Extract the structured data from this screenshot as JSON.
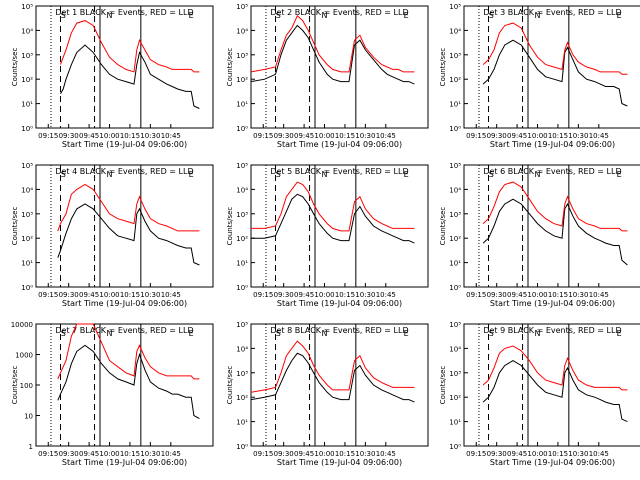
{
  "figure": {
    "x_label": "Start Time (19-Jul-04 09:06:00)",
    "y_label": "Counts/sec",
    "x_ticks": [
      "09:15",
      "09:30",
      "09:45",
      "10:00",
      "10:15",
      "10:30",
      "10:45"
    ],
    "colors": {
      "events": "#000000",
      "lld": "#ff0000",
      "axis": "#000000"
    }
  },
  "chart_data": [
    {
      "type": "line",
      "title": "Det 1 BLACK = Events, RED = LLD",
      "yticks": [
        "10⁰",
        "10¹",
        "10²",
        "10³",
        "10⁴",
        "10⁵"
      ],
      "ylim_log": [
        0,
        5
      ],
      "x_minutes": [
        0,
        18,
        20,
        22,
        26,
        30,
        36,
        42,
        48,
        54,
        60,
        66,
        72,
        74,
        76,
        80,
        84,
        90,
        96,
        100,
        104,
        110,
        114,
        116,
        120,
        130
      ],
      "series": [
        {
          "name": "Events",
          "log10_values": [
            null,
            1.4,
            1.6,
            2.0,
            2.6,
            3.1,
            3.4,
            3.1,
            2.6,
            2.2,
            2.0,
            1.9,
            1.8,
            2.6,
            3.1,
            2.7,
            2.2,
            2.0,
            1.8,
            1.7,
            1.6,
            1.5,
            1.5,
            0.9,
            0.8,
            null
          ]
        },
        {
          "name": "LLD",
          "log10_values": [
            null,
            2.6,
            2.9,
            3.2,
            3.9,
            4.3,
            4.4,
            4.2,
            3.5,
            2.9,
            2.6,
            2.4,
            2.3,
            3.2,
            3.6,
            3.2,
            2.8,
            2.6,
            2.5,
            2.4,
            2.4,
            2.4,
            2.4,
            2.3,
            2.3,
            null
          ]
        }
      ],
      "vlines": [
        {
          "x_minutes": 11,
          "style": "dotted"
        },
        {
          "x_minutes": 18,
          "style": "dashed"
        },
        {
          "x_minutes": 43,
          "style": "dashed"
        },
        {
          "x_minutes": 47,
          "style": "solid"
        },
        {
          "x_minutes": 77,
          "style": "solid"
        }
      ],
      "markers": [
        "S",
        "N",
        "E"
      ]
    },
    {
      "type": "line",
      "title": "Det 2 BLACK = Events, RED = LLD",
      "yticks": [
        "10⁰",
        "10¹",
        "10²",
        "10³",
        "10⁴",
        "10⁵"
      ],
      "ylim_log": [
        0,
        5
      ],
      "x_minutes": [
        0,
        10,
        18,
        22,
        26,
        30,
        34,
        38,
        42,
        46,
        50,
        56,
        60,
        66,
        72,
        76,
        80,
        84,
        90,
        96,
        100,
        104,
        108,
        112,
        116,
        120
      ],
      "series": [
        {
          "name": "Events",
          "log10_values": [
            1.9,
            2.0,
            2.2,
            3.0,
            3.6,
            3.9,
            4.2,
            4.0,
            3.7,
            3.2,
            2.7,
            2.2,
            2.0,
            1.9,
            1.9,
            3.4,
            3.6,
            3.2,
            2.8,
            2.4,
            2.2,
            2.1,
            2.0,
            1.9,
            1.9,
            1.8
          ]
        },
        {
          "name": "LLD",
          "log10_values": [
            2.3,
            2.4,
            2.5,
            3.2,
            3.8,
            4.1,
            4.6,
            4.4,
            4.0,
            3.5,
            3.0,
            2.6,
            2.4,
            2.3,
            2.3,
            3.6,
            3.8,
            3.3,
            2.9,
            2.6,
            2.5,
            2.4,
            2.4,
            2.3,
            2.3,
            2.3
          ]
        }
      ],
      "vlines": [
        {
          "x_minutes": 11,
          "style": "dotted"
        },
        {
          "x_minutes": 18,
          "style": "dashed"
        },
        {
          "x_minutes": 43,
          "style": "dashed"
        },
        {
          "x_minutes": 47,
          "style": "solid"
        },
        {
          "x_minutes": 77,
          "style": "solid"
        }
      ],
      "markers": [
        "S",
        "N",
        "E"
      ]
    },
    {
      "type": "line",
      "title": "Det 3 BLACK = Events, RED = LLD",
      "yticks": [
        "10⁰",
        "10¹",
        "10²",
        "10³",
        "10⁴",
        "10⁵"
      ],
      "ylim_log": [
        0,
        5
      ],
      "x_minutes": [
        0,
        14,
        18,
        22,
        26,
        30,
        36,
        42,
        48,
        54,
        60,
        66,
        72,
        74,
        76,
        80,
        84,
        90,
        96,
        100,
        104,
        110,
        114,
        116,
        120,
        130
      ],
      "series": [
        {
          "name": "Events",
          "log10_values": [
            null,
            1.8,
            2.0,
            2.4,
            3.0,
            3.4,
            3.6,
            3.4,
            2.9,
            2.4,
            2.1,
            2.0,
            1.9,
            3.1,
            3.3,
            2.8,
            2.3,
            2.0,
            1.9,
            1.8,
            1.7,
            1.7,
            1.6,
            1.0,
            0.9,
            null
          ]
        },
        {
          "name": "LLD",
          "log10_values": [
            null,
            2.6,
            2.8,
            3.2,
            3.9,
            4.2,
            4.3,
            4.1,
            3.4,
            2.9,
            2.6,
            2.5,
            2.4,
            3.2,
            3.5,
            3.0,
            2.7,
            2.5,
            2.4,
            2.3,
            2.3,
            2.3,
            2.3,
            2.2,
            2.2,
            null
          ]
        }
      ],
      "vlines": [
        {
          "x_minutes": 11,
          "style": "dotted"
        },
        {
          "x_minutes": 18,
          "style": "dashed"
        },
        {
          "x_minutes": 43,
          "style": "dashed"
        },
        {
          "x_minutes": 47,
          "style": "solid"
        },
        {
          "x_minutes": 77,
          "style": "solid"
        }
      ],
      "markers": [
        "S",
        "N",
        "E"
      ]
    },
    {
      "type": "line",
      "title": "Det 4 BLACK = Events, RED = LLD",
      "yticks": [
        "10⁰",
        "10¹",
        "10²",
        "10³",
        "10⁴",
        "10⁵"
      ],
      "ylim_log": [
        0,
        5
      ],
      "x_minutes": [
        0,
        16,
        18,
        22,
        26,
        30,
        36,
        42,
        48,
        54,
        60,
        66,
        72,
        74,
        76,
        80,
        84,
        90,
        96,
        100,
        104,
        110,
        114,
        116,
        120,
        130
      ],
      "series": [
        {
          "name": "Events",
          "log10_values": [
            null,
            1.2,
            1.5,
            2.2,
            2.8,
            3.2,
            3.4,
            3.2,
            2.8,
            2.4,
            2.1,
            2.0,
            1.9,
            3.0,
            3.2,
            2.7,
            2.3,
            2.0,
            1.9,
            1.8,
            1.7,
            1.6,
            1.6,
            1.0,
            0.9,
            null
          ]
        },
        {
          "name": "LLD",
          "log10_values": [
            null,
            2.3,
            2.6,
            3.0,
            3.8,
            4.0,
            4.2,
            4.0,
            3.5,
            3.0,
            2.8,
            2.7,
            2.6,
            3.4,
            3.7,
            3.2,
            2.8,
            2.6,
            2.5,
            2.4,
            2.3,
            2.3,
            2.3,
            2.3,
            2.3,
            null
          ]
        }
      ],
      "vlines": [
        {
          "x_minutes": 11,
          "style": "dotted"
        },
        {
          "x_minutes": 18,
          "style": "dashed"
        },
        {
          "x_minutes": 43,
          "style": "dashed"
        },
        {
          "x_minutes": 47,
          "style": "solid"
        },
        {
          "x_minutes": 77,
          "style": "solid"
        }
      ],
      "markers": [
        "S",
        "N",
        "E"
      ]
    },
    {
      "type": "line",
      "title": "Det 5 BLACK = Events, RED = LLD",
      "yticks": [
        "10⁰",
        "10¹",
        "10²",
        "10³",
        "10⁴",
        "10⁵"
      ],
      "ylim_log": [
        0,
        5
      ],
      "x_minutes": [
        0,
        10,
        18,
        22,
        26,
        30,
        34,
        38,
        42,
        46,
        50,
        56,
        60,
        66,
        72,
        76,
        80,
        84,
        90,
        96,
        100,
        104,
        108,
        112,
        116,
        120
      ],
      "series": [
        {
          "name": "Events",
          "log10_values": [
            2.0,
            2.0,
            2.1,
            2.6,
            3.1,
            3.6,
            3.8,
            3.7,
            3.4,
            3.0,
            2.6,
            2.2,
            2.0,
            1.9,
            1.9,
            3.0,
            3.3,
            2.9,
            2.5,
            2.3,
            2.2,
            2.1,
            2.0,
            1.9,
            1.9,
            1.8
          ]
        },
        {
          "name": "LLD",
          "log10_values": [
            2.4,
            2.4,
            2.5,
            3.0,
            3.7,
            4.0,
            4.3,
            4.2,
            3.9,
            3.4,
            3.0,
            2.6,
            2.4,
            2.3,
            2.3,
            3.5,
            3.7,
            3.2,
            2.8,
            2.6,
            2.5,
            2.4,
            2.4,
            2.4,
            2.4,
            2.4
          ]
        }
      ],
      "vlines": [
        {
          "x_minutes": 11,
          "style": "dotted"
        },
        {
          "x_minutes": 18,
          "style": "dashed"
        },
        {
          "x_minutes": 43,
          "style": "dashed"
        },
        {
          "x_minutes": 47,
          "style": "solid"
        },
        {
          "x_minutes": 77,
          "style": "solid"
        }
      ],
      "markers": [
        "S",
        "N",
        "E"
      ]
    },
    {
      "type": "line",
      "title": "Det 6 BLACK = Events, RED = LLD",
      "yticks": [
        "10⁰",
        "10¹",
        "10²",
        "10³",
        "10⁴",
        "10⁵"
      ],
      "ylim_log": [
        0,
        5
      ],
      "x_minutes": [
        0,
        14,
        18,
        22,
        26,
        30,
        36,
        42,
        48,
        54,
        60,
        66,
        72,
        74,
        76,
        80,
        84,
        90,
        96,
        100,
        104,
        110,
        114,
        116,
        120,
        130
      ],
      "series": [
        {
          "name": "Events",
          "log10_values": [
            null,
            1.8,
            2.0,
            2.5,
            3.1,
            3.4,
            3.6,
            3.4,
            3.0,
            2.6,
            2.3,
            2.1,
            2.0,
            3.2,
            3.4,
            2.9,
            2.5,
            2.2,
            2.0,
            1.9,
            1.8,
            1.7,
            1.7,
            1.1,
            0.9,
            null
          ]
        },
        {
          "name": "LLD",
          "log10_values": [
            null,
            2.6,
            2.8,
            3.3,
            3.9,
            4.2,
            4.3,
            4.1,
            3.6,
            3.1,
            2.8,
            2.6,
            2.5,
            3.4,
            3.7,
            3.2,
            2.8,
            2.6,
            2.5,
            2.4,
            2.4,
            2.4,
            2.4,
            2.3,
            2.3,
            null
          ]
        }
      ],
      "vlines": [
        {
          "x_minutes": 11,
          "style": "dotted"
        },
        {
          "x_minutes": 18,
          "style": "dashed"
        },
        {
          "x_minutes": 43,
          "style": "dashed"
        },
        {
          "x_minutes": 47,
          "style": "solid"
        },
        {
          "x_minutes": 77,
          "style": "solid"
        }
      ],
      "markers": [
        "S",
        "N",
        "E"
      ]
    },
    {
      "type": "line",
      "title": "Det 7 BLACK = Events, RED = LLD",
      "yticks": [
        "1",
        "10",
        "100",
        "1000",
        "10000"
      ],
      "ylim_log": [
        0,
        4
      ],
      "x_minutes": [
        0,
        16,
        18,
        22,
        26,
        30,
        36,
        42,
        48,
        54,
        60,
        66,
        72,
        74,
        76,
        80,
        84,
        90,
        96,
        100,
        104,
        110,
        114,
        116,
        120,
        130
      ],
      "series": [
        {
          "name": "Events",
          "log10_values": [
            null,
            1.5,
            1.7,
            2.1,
            2.7,
            3.1,
            3.3,
            3.1,
            2.7,
            2.4,
            2.2,
            2.1,
            2.0,
            2.7,
            3.0,
            2.5,
            2.1,
            1.9,
            1.8,
            1.7,
            1.7,
            1.6,
            1.6,
            1.0,
            0.9,
            null
          ]
        },
        {
          "name": "LLD",
          "log10_values": [
            null,
            2.2,
            2.4,
            2.8,
            3.6,
            4.0,
            4.0,
            4.0,
            3.4,
            2.8,
            2.6,
            2.4,
            2.3,
            3.1,
            3.3,
            2.9,
            2.6,
            2.4,
            2.3,
            2.3,
            2.3,
            2.3,
            2.3,
            2.2,
            2.2,
            null
          ]
        }
      ],
      "vlines": [
        {
          "x_minutes": 11,
          "style": "dotted"
        },
        {
          "x_minutes": 18,
          "style": "dashed"
        },
        {
          "x_minutes": 43,
          "style": "dashed"
        },
        {
          "x_minutes": 47,
          "style": "solid"
        },
        {
          "x_minutes": 77,
          "style": "solid"
        }
      ],
      "markers": [
        "S",
        "N",
        "E"
      ]
    },
    {
      "type": "line",
      "title": "Det 8 BLACK = Events, RED = LLD",
      "yticks": [
        "10⁰",
        "10¹",
        "10²",
        "10³",
        "10⁴",
        "10⁵"
      ],
      "ylim_log": [
        0,
        5
      ],
      "x_minutes": [
        0,
        10,
        18,
        22,
        26,
        30,
        34,
        38,
        42,
        46,
        50,
        56,
        60,
        66,
        72,
        76,
        80,
        84,
        90,
        96,
        100,
        104,
        108,
        112,
        116,
        120
      ],
      "series": [
        {
          "name": "Events",
          "log10_values": [
            1.9,
            2.0,
            2.1,
            2.6,
            3.1,
            3.5,
            3.8,
            3.7,
            3.4,
            3.0,
            2.6,
            2.2,
            2.0,
            1.9,
            1.9,
            3.1,
            3.3,
            2.9,
            2.5,
            2.3,
            2.2,
            2.1,
            2.0,
            1.9,
            1.9,
            1.8
          ]
        },
        {
          "name": "LLD",
          "log10_values": [
            2.2,
            2.3,
            2.4,
            3.0,
            3.7,
            4.0,
            4.3,
            4.1,
            3.8,
            3.3,
            2.9,
            2.5,
            2.3,
            2.3,
            2.3,
            3.5,
            3.7,
            3.2,
            2.8,
            2.6,
            2.5,
            2.4,
            2.4,
            2.4,
            2.4,
            2.4
          ]
        }
      ],
      "vlines": [
        {
          "x_minutes": 11,
          "style": "dotted"
        },
        {
          "x_minutes": 18,
          "style": "dashed"
        },
        {
          "x_minutes": 43,
          "style": "dashed"
        },
        {
          "x_minutes": 47,
          "style": "solid"
        },
        {
          "x_minutes": 77,
          "style": "solid"
        }
      ],
      "markers": [
        "S",
        "N",
        "E"
      ]
    },
    {
      "type": "line",
      "title": "Det 9 BLACK = Events, RED = LLD",
      "yticks": [
        "10⁰",
        "10¹",
        "10²",
        "10³",
        "10⁴",
        "10⁵"
      ],
      "ylim_log": [
        0,
        5
      ],
      "x_minutes": [
        0,
        14,
        18,
        22,
        26,
        30,
        36,
        42,
        48,
        54,
        60,
        66,
        72,
        74,
        76,
        80,
        84,
        90,
        96,
        100,
        104,
        110,
        114,
        116,
        120,
        130
      ],
      "series": [
        {
          "name": "Events",
          "log10_values": [
            null,
            1.8,
            2.0,
            2.4,
            3.0,
            3.3,
            3.5,
            3.3,
            2.9,
            2.5,
            2.2,
            2.1,
            2.0,
            3.0,
            3.2,
            2.7,
            2.3,
            2.1,
            2.0,
            1.9,
            1.8,
            1.7,
            1.7,
            1.1,
            1.0,
            null
          ]
        },
        {
          "name": "LLD",
          "log10_values": [
            null,
            2.5,
            2.7,
            3.2,
            3.8,
            4.0,
            4.1,
            3.9,
            3.5,
            3.0,
            2.7,
            2.6,
            2.5,
            3.3,
            3.6,
            3.1,
            2.7,
            2.5,
            2.4,
            2.4,
            2.4,
            2.4,
            2.4,
            2.3,
            2.3,
            null
          ]
        }
      ],
      "vlines": [
        {
          "x_minutes": 11,
          "style": "dotted"
        },
        {
          "x_minutes": 18,
          "style": "dashed"
        },
        {
          "x_minutes": 43,
          "style": "dashed"
        },
        {
          "x_minutes": 47,
          "style": "solid"
        },
        {
          "x_minutes": 77,
          "style": "solid"
        }
      ],
      "markers": [
        "S",
        "N",
        "E"
      ]
    }
  ]
}
